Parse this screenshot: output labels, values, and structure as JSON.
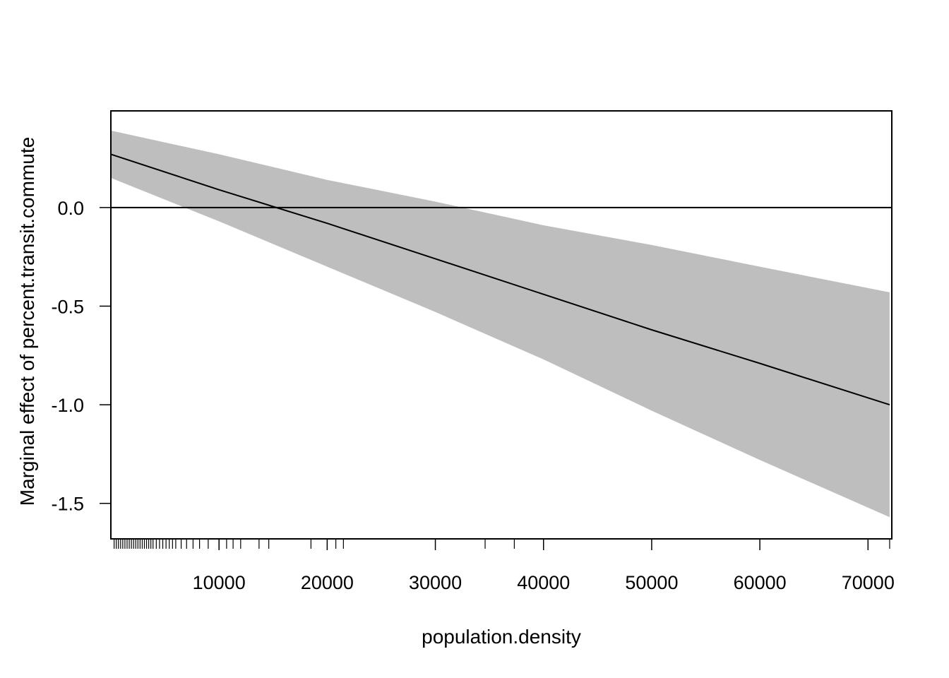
{
  "chart_data": {
    "type": "line",
    "xlabel": "population.density",
    "ylabel": "Marginal effect of percent.transit.commute",
    "xlim": [
      0,
      72200
    ],
    "ylim": [
      -1.68,
      0.49
    ],
    "x_ticks": [
      10000,
      20000,
      30000,
      40000,
      50000,
      60000,
      70000
    ],
    "x_tick_labels": [
      "10000",
      "20000",
      "30000",
      "40000",
      "50000",
      "60000",
      "70000"
    ],
    "y_ticks": [
      -1.5,
      -1.0,
      -0.5,
      0.0
    ],
    "y_tick_labels": [
      "-1.5",
      "-1.0",
      "-0.5",
      "0.0"
    ],
    "reference_line": {
      "y": 0.0
    },
    "series": [
      {
        "x": [
          0,
          10000,
          20000,
          30000,
          40000,
          50000,
          60000,
          72000
        ],
        "values": [
          0.27,
          0.09,
          -0.08,
          -0.26,
          -0.44,
          -0.62,
          -0.79,
          -1.0
        ]
      }
    ],
    "confidence_band": {
      "x": [
        0,
        10000,
        20000,
        30000,
        40000,
        50000,
        60000,
        72000
      ],
      "upper": [
        0.39,
        0.27,
        0.14,
        0.03,
        -0.09,
        -0.19,
        -0.3,
        -0.43
      ],
      "lower": [
        0.15,
        -0.07,
        -0.3,
        -0.53,
        -0.77,
        -1.03,
        -1.28,
        -1.57
      ]
    },
    "rug_x": [
      300,
      500,
      700,
      900,
      1100,
      1300,
      1500,
      1700,
      1900,
      2100,
      2300,
      2500,
      2700,
      2900,
      3100,
      3300,
      3500,
      3700,
      3900,
      4200,
      4500,
      4800,
      5100,
      5400,
      5700,
      6000,
      6500,
      7000,
      7600,
      8200,
      9000,
      10000,
      10700,
      11300,
      12000,
      13700,
      14600,
      18500,
      20800,
      21500,
      34600,
      37300,
      72000
    ],
    "grid": false,
    "colors": {
      "band": "#bebebe",
      "line": "#000000",
      "frame": "#000000"
    }
  }
}
